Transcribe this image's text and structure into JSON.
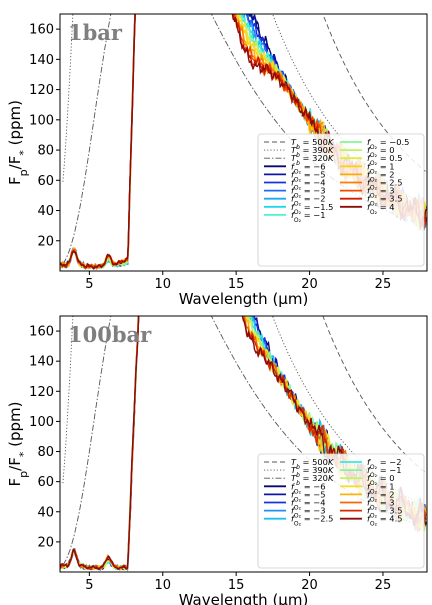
{
  "chart_data": [
    {
      "type": "line",
      "panel_label": "1bar",
      "xlabel": "Wavelength (μm)",
      "ylabel": "F_p/F_* (ppm)",
      "xlim": [
        3,
        28
      ],
      "ylim": [
        0,
        170
      ],
      "xticks": [
        5,
        10,
        15,
        20,
        25
      ],
      "yticks": [
        20,
        40,
        60,
        80,
        100,
        120,
        140,
        160
      ],
      "blackbody": [
        {
          "label": "T_b = 500 K",
          "temp": 500,
          "style": "dashed",
          "color": "#555555"
        },
        {
          "label": "T_b = 390 K",
          "temp": 390,
          "style": "dotted",
          "color": "#555555"
        },
        {
          "label": "T_b = 320 K",
          "temp": 320,
          "style": "dashdot",
          "color": "#555555"
        }
      ],
      "series": [
        {
          "name": "f_O2 = −6",
          "value": -6,
          "color": "#0a0a6e"
        },
        {
          "name": "f_O2 = −5",
          "value": -5,
          "color": "#0f14a8"
        },
        {
          "name": "f_O2 = −4",
          "value": -4,
          "color": "#1433e0"
        },
        {
          "name": "f_O2 = −3",
          "value": -3,
          "color": "#1f6cf2"
        },
        {
          "name": "f_O2 = −2",
          "value": -2,
          "color": "#1aa8f0"
        },
        {
          "name": "f_O2 = −1.5",
          "value": -1.5,
          "color": "#22d6e8"
        },
        {
          "name": "f_O2 = −1",
          "value": -1,
          "color": "#4cf2d0"
        },
        {
          "name": "f_O2 = −0.5",
          "value": -0.5,
          "color": "#86f59a"
        },
        {
          "name": "f_O2 = 0",
          "value": 0,
          "color": "#b8f26a"
        },
        {
          "name": "f_O2 = 0.5",
          "value": 0.5,
          "color": "#e2ec3a"
        },
        {
          "name": "f_O2 = 1",
          "value": 1,
          "color": "#ffd21a"
        },
        {
          "name": "f_O2 = 2",
          "value": 2,
          "color": "#ffa80a"
        },
        {
          "name": "f_O2 = 2.5",
          "value": 2.5,
          "color": "#ff7a00"
        },
        {
          "name": "f_O2 = 3",
          "value": 3,
          "color": "#f24a00"
        },
        {
          "name": "f_O2 = 3.5",
          "value": 3.5,
          "color": "#d21a00"
        },
        {
          "name": "f_O2 = 4",
          "value": 4,
          "color": "#8c0a0a"
        }
      ]
    },
    {
      "type": "line",
      "panel_label": "100bar",
      "xlabel": "Wavelength (μm)",
      "ylabel": "F_p/F_* (ppm)",
      "xlim": [
        3,
        28
      ],
      "ylim": [
        0,
        170
      ],
      "xticks": [
        5,
        10,
        15,
        20,
        25
      ],
      "yticks": [
        20,
        40,
        60,
        80,
        100,
        120,
        140,
        160
      ],
      "blackbody": [
        {
          "label": "T_b = 500 K",
          "temp": 500,
          "style": "dashed",
          "color": "#555555"
        },
        {
          "label": "T_b = 390 K",
          "temp": 390,
          "style": "dotted",
          "color": "#555555"
        },
        {
          "label": "T_b = 320 K",
          "temp": 320,
          "style": "dashdot",
          "color": "#555555"
        }
      ],
      "series": [
        {
          "name": "f_O2 = −6",
          "value": -6,
          "color": "#0a0a6e"
        },
        {
          "name": "f_O2 = −5",
          "value": -5,
          "color": "#0f14a8"
        },
        {
          "name": "f_O2 = −4",
          "value": -4,
          "color": "#1433e0"
        },
        {
          "name": "f_O2 = −3",
          "value": -3,
          "color": "#1f8ff2"
        },
        {
          "name": "f_O2 = −2.5",
          "value": -2.5,
          "color": "#1ac2f0"
        },
        {
          "name": "f_O2 = −2",
          "value": -2,
          "color": "#3be8e0"
        },
        {
          "name": "f_O2 = −1",
          "value": -1,
          "color": "#86f59a"
        },
        {
          "name": "f_O2 = 0",
          "value": 0,
          "color": "#c8f25a"
        },
        {
          "name": "f_O2 = 1",
          "value": 1,
          "color": "#f2e02a"
        },
        {
          "name": "f_O2 = 2",
          "value": 2,
          "color": "#ffb00a"
        },
        {
          "name": "f_O2 = 3",
          "value": 3,
          "color": "#f26a00"
        },
        {
          "name": "f_O2 = 3.5",
          "value": 3.5,
          "color": "#d22a00"
        },
        {
          "name": "f_O2 = 4.5",
          "value": 4.5,
          "color": "#8c0a0a"
        }
      ]
    }
  ]
}
